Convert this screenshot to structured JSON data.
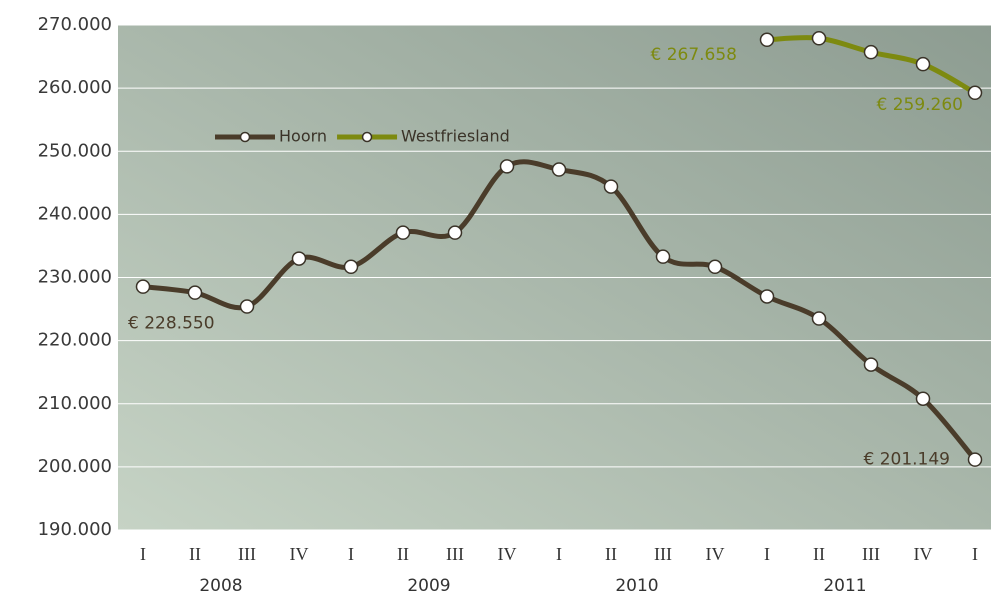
{
  "chart_data": {
    "type": "line",
    "categories": [
      "I",
      "II",
      "III",
      "IV",
      "I",
      "II",
      "III",
      "IV",
      "I",
      "II",
      "III",
      "IV",
      "I",
      "II",
      "III",
      "IV",
      "I"
    ],
    "year_labels": [
      "2008",
      "2009",
      "2010",
      "2011"
    ],
    "series": [
      {
        "name": "Hoorn",
        "color": "#4a3c2a",
        "values": [
          228550,
          227600,
          225400,
          233000,
          231700,
          237100,
          237100,
          247600,
          247100,
          244400,
          233300,
          231700,
          227000,
          223500,
          216200,
          210800,
          201149
        ],
        "value_labels": [
          "€ 228.550",
          null,
          null,
          null,
          null,
          null,
          null,
          null,
          null,
          null,
          null,
          null,
          null,
          null,
          null,
          null,
          "€ 201.149"
        ]
      },
      {
        "name": "Westfriesland",
        "color": "#7d8a10",
        "values": [
          null,
          null,
          null,
          null,
          null,
          null,
          null,
          null,
          null,
          null,
          null,
          null,
          267658,
          267900,
          265700,
          263800,
          259260
        ],
        "value_labels": [
          null,
          null,
          null,
          null,
          null,
          null,
          null,
          null,
          null,
          null,
          null,
          null,
          "€ 267.658",
          null,
          null,
          null,
          "€ 259.260"
        ]
      }
    ],
    "ylim": [
      190000,
      270000
    ],
    "yticks": [
      {
        "value": 190000,
        "label": "190.000"
      },
      {
        "value": 200000,
        "label": "200.000"
      },
      {
        "value": 210000,
        "label": "210.000"
      },
      {
        "value": 220000,
        "label": "220.000"
      },
      {
        "value": 230000,
        "label": "230.000"
      },
      {
        "value": 240000,
        "label": "240.000"
      },
      {
        "value": 250000,
        "label": "250.000"
      },
      {
        "value": 260000,
        "label": "260.000"
      },
      {
        "value": 270000,
        "label": "270.000"
      }
    ],
    "grid": true,
    "legend": "upper left"
  }
}
